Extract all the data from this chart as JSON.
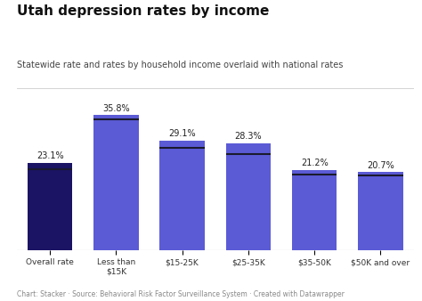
{
  "title": "Utah depression rates by income",
  "subtitle": "Statewide rate and rates by household income overlaid with national rates",
  "footer": "Chart: Stacker · Source: Behavioral Risk Factor Surveillance System · Created with Datawrapper",
  "categories": [
    "Overall rate",
    "Less than\n$15K",
    "$15-25K",
    "$25-35K",
    "$35-50K",
    "$50K and over"
  ],
  "values": [
    23.1,
    35.8,
    29.1,
    28.3,
    21.2,
    20.7
  ],
  "national_lines": [
    21.5,
    34.8,
    27.2,
    25.5,
    20.0,
    19.8
  ],
  "bar_colors": [
    "#1b1464",
    "#5b5bd6",
    "#5b5bd6",
    "#5b5bd6",
    "#5b5bd6",
    "#5b5bd6"
  ],
  "value_labels": [
    "23.1%",
    "35.8%",
    "29.1%",
    "28.3%",
    "21.2%",
    "20.7%"
  ],
  "ylim": [
    0,
    40
  ],
  "background_color": "#ffffff",
  "title_fontsize": 11,
  "subtitle_fontsize": 7,
  "footer_fontsize": 5.5,
  "label_fontsize": 7,
  "tick_fontsize": 6.5
}
